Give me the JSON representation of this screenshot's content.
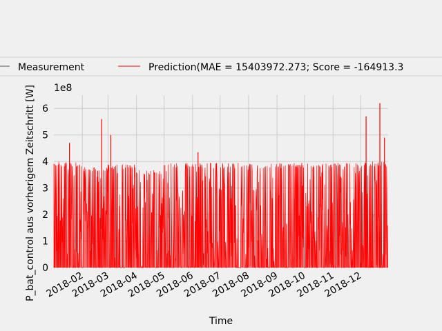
{
  "chart_data": {
    "type": "line",
    "title": "",
    "xlabel": "Time",
    "ylabel": "P_bat_control aus vorherigem Zeitschritt [W]",
    "y_scale_label": "1e8",
    "ylim": [
      0,
      6.5
    ],
    "y_ticks": [
      "0",
      "1",
      "2",
      "3",
      "4",
      "5",
      "6"
    ],
    "x_range": [
      "2018-01-01",
      "2018-12-31"
    ],
    "x_ticks": [
      "2018-02",
      "2018-03",
      "2018-04",
      "2018-05",
      "2018-06",
      "2018-07",
      "2018-08",
      "2018-09",
      "2018-10",
      "2018-11",
      "2018-12"
    ],
    "grid": true,
    "legend_placement": "top, single row above plot",
    "series": [
      {
        "name": "Measurement",
        "color": "#555555",
        "values_note": "hidden behind prediction"
      },
      {
        "name": "Prediction(MAE = 15403972.273; Score = -164913.3",
        "color": "#ff0000",
        "peaks": [
          {
            "x": "2018-01-18",
            "y": 4.7
          },
          {
            "x": "2018-02-22",
            "y": 5.6
          },
          {
            "x": "2018-03-04",
            "y": 5.0
          },
          {
            "x": "2018-06-07",
            "y": 4.35
          },
          {
            "x": "2018-12-07",
            "y": 5.7
          },
          {
            "x": "2018-12-22",
            "y": 6.2
          },
          {
            "x": "2018-12-27",
            "y": 4.9
          }
        ],
        "typical_max_by_month": [
          {
            "month": "2018-01",
            "y": 4.0
          },
          {
            "month": "2018-02",
            "y": 3.8
          },
          {
            "month": "2018-03",
            "y": 3.9
          },
          {
            "month": "2018-04",
            "y": 3.7
          },
          {
            "month": "2018-05",
            "y": 3.95
          },
          {
            "month": "2018-06",
            "y": 3.95
          },
          {
            "month": "2018-07",
            "y": 3.95
          },
          {
            "month": "2018-08",
            "y": 3.95
          },
          {
            "month": "2018-09",
            "y": 3.95
          },
          {
            "month": "2018-10",
            "y": 3.95
          },
          {
            "month": "2018-11",
            "y": 3.95
          },
          {
            "month": "2018-12",
            "y": 4.0
          }
        ]
      }
    ]
  }
}
